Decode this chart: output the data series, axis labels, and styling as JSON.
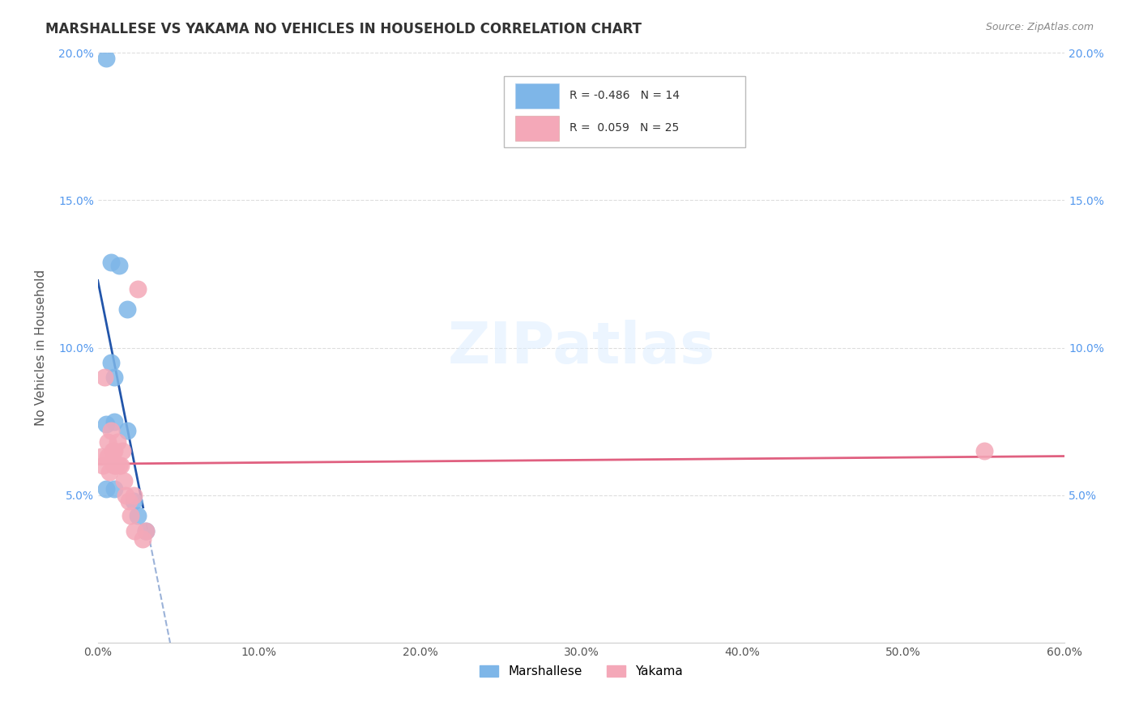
{
  "title": "MARSHALLESE VS YAKAMA NO VEHICLES IN HOUSEHOLD CORRELATION CHART",
  "source": "Source: ZipAtlas.com",
  "ylabel": "No Vehicles in Household",
  "xmin": 0.0,
  "xmax": 0.6,
  "ymin": 0.0,
  "ymax": 0.2,
  "xticks": [
    0.0,
    0.1,
    0.2,
    0.3,
    0.4,
    0.5,
    0.6
  ],
  "yticks": [
    0.05,
    0.1,
    0.15,
    0.2
  ],
  "xtick_labels": [
    "0.0%",
    "10.0%",
    "20.0%",
    "30.0%",
    "40.0%",
    "50.0%",
    "60.0%"
  ],
  "ytick_labels": [
    "5.0%",
    "10.0%",
    "15.0%",
    "20.0%"
  ],
  "legend_bottom_labels": [
    "Marshallese",
    "Yakama"
  ],
  "blue_R": "-0.486",
  "blue_N": "14",
  "pink_R": "0.059",
  "pink_N": "25",
  "blue_color": "#7EB6E8",
  "pink_color": "#F4A8B8",
  "blue_line_color": "#2255AA",
  "pink_line_color": "#E06080",
  "watermark": "ZIPatlas",
  "marshallese_points": [
    [
      0.005,
      0.198
    ],
    [
      0.008,
      0.129
    ],
    [
      0.013,
      0.128
    ],
    [
      0.018,
      0.113
    ],
    [
      0.008,
      0.095
    ],
    [
      0.01,
      0.09
    ],
    [
      0.005,
      0.074
    ],
    [
      0.01,
      0.075
    ],
    [
      0.018,
      0.072
    ],
    [
      0.005,
      0.052
    ],
    [
      0.01,
      0.052
    ],
    [
      0.022,
      0.048
    ],
    [
      0.025,
      0.043
    ],
    [
      0.03,
      0.038
    ]
  ],
  "yakama_points": [
    [
      0.002,
      0.063
    ],
    [
      0.003,
      0.06
    ],
    [
      0.004,
      0.09
    ],
    [
      0.006,
      0.068
    ],
    [
      0.006,
      0.063
    ],
    [
      0.007,
      0.058
    ],
    [
      0.008,
      0.072
    ],
    [
      0.009,
      0.065
    ],
    [
      0.01,
      0.065
    ],
    [
      0.01,
      0.06
    ],
    [
      0.011,
      0.06
    ],
    [
      0.012,
      0.068
    ],
    [
      0.013,
      0.06
    ],
    [
      0.014,
      0.06
    ],
    [
      0.015,
      0.065
    ],
    [
      0.016,
      0.055
    ],
    [
      0.017,
      0.05
    ],
    [
      0.019,
      0.048
    ],
    [
      0.02,
      0.043
    ],
    [
      0.022,
      0.05
    ],
    [
      0.023,
      0.038
    ],
    [
      0.025,
      0.12
    ],
    [
      0.028,
      0.035
    ],
    [
      0.03,
      0.038
    ],
    [
      0.55,
      0.065
    ]
  ]
}
